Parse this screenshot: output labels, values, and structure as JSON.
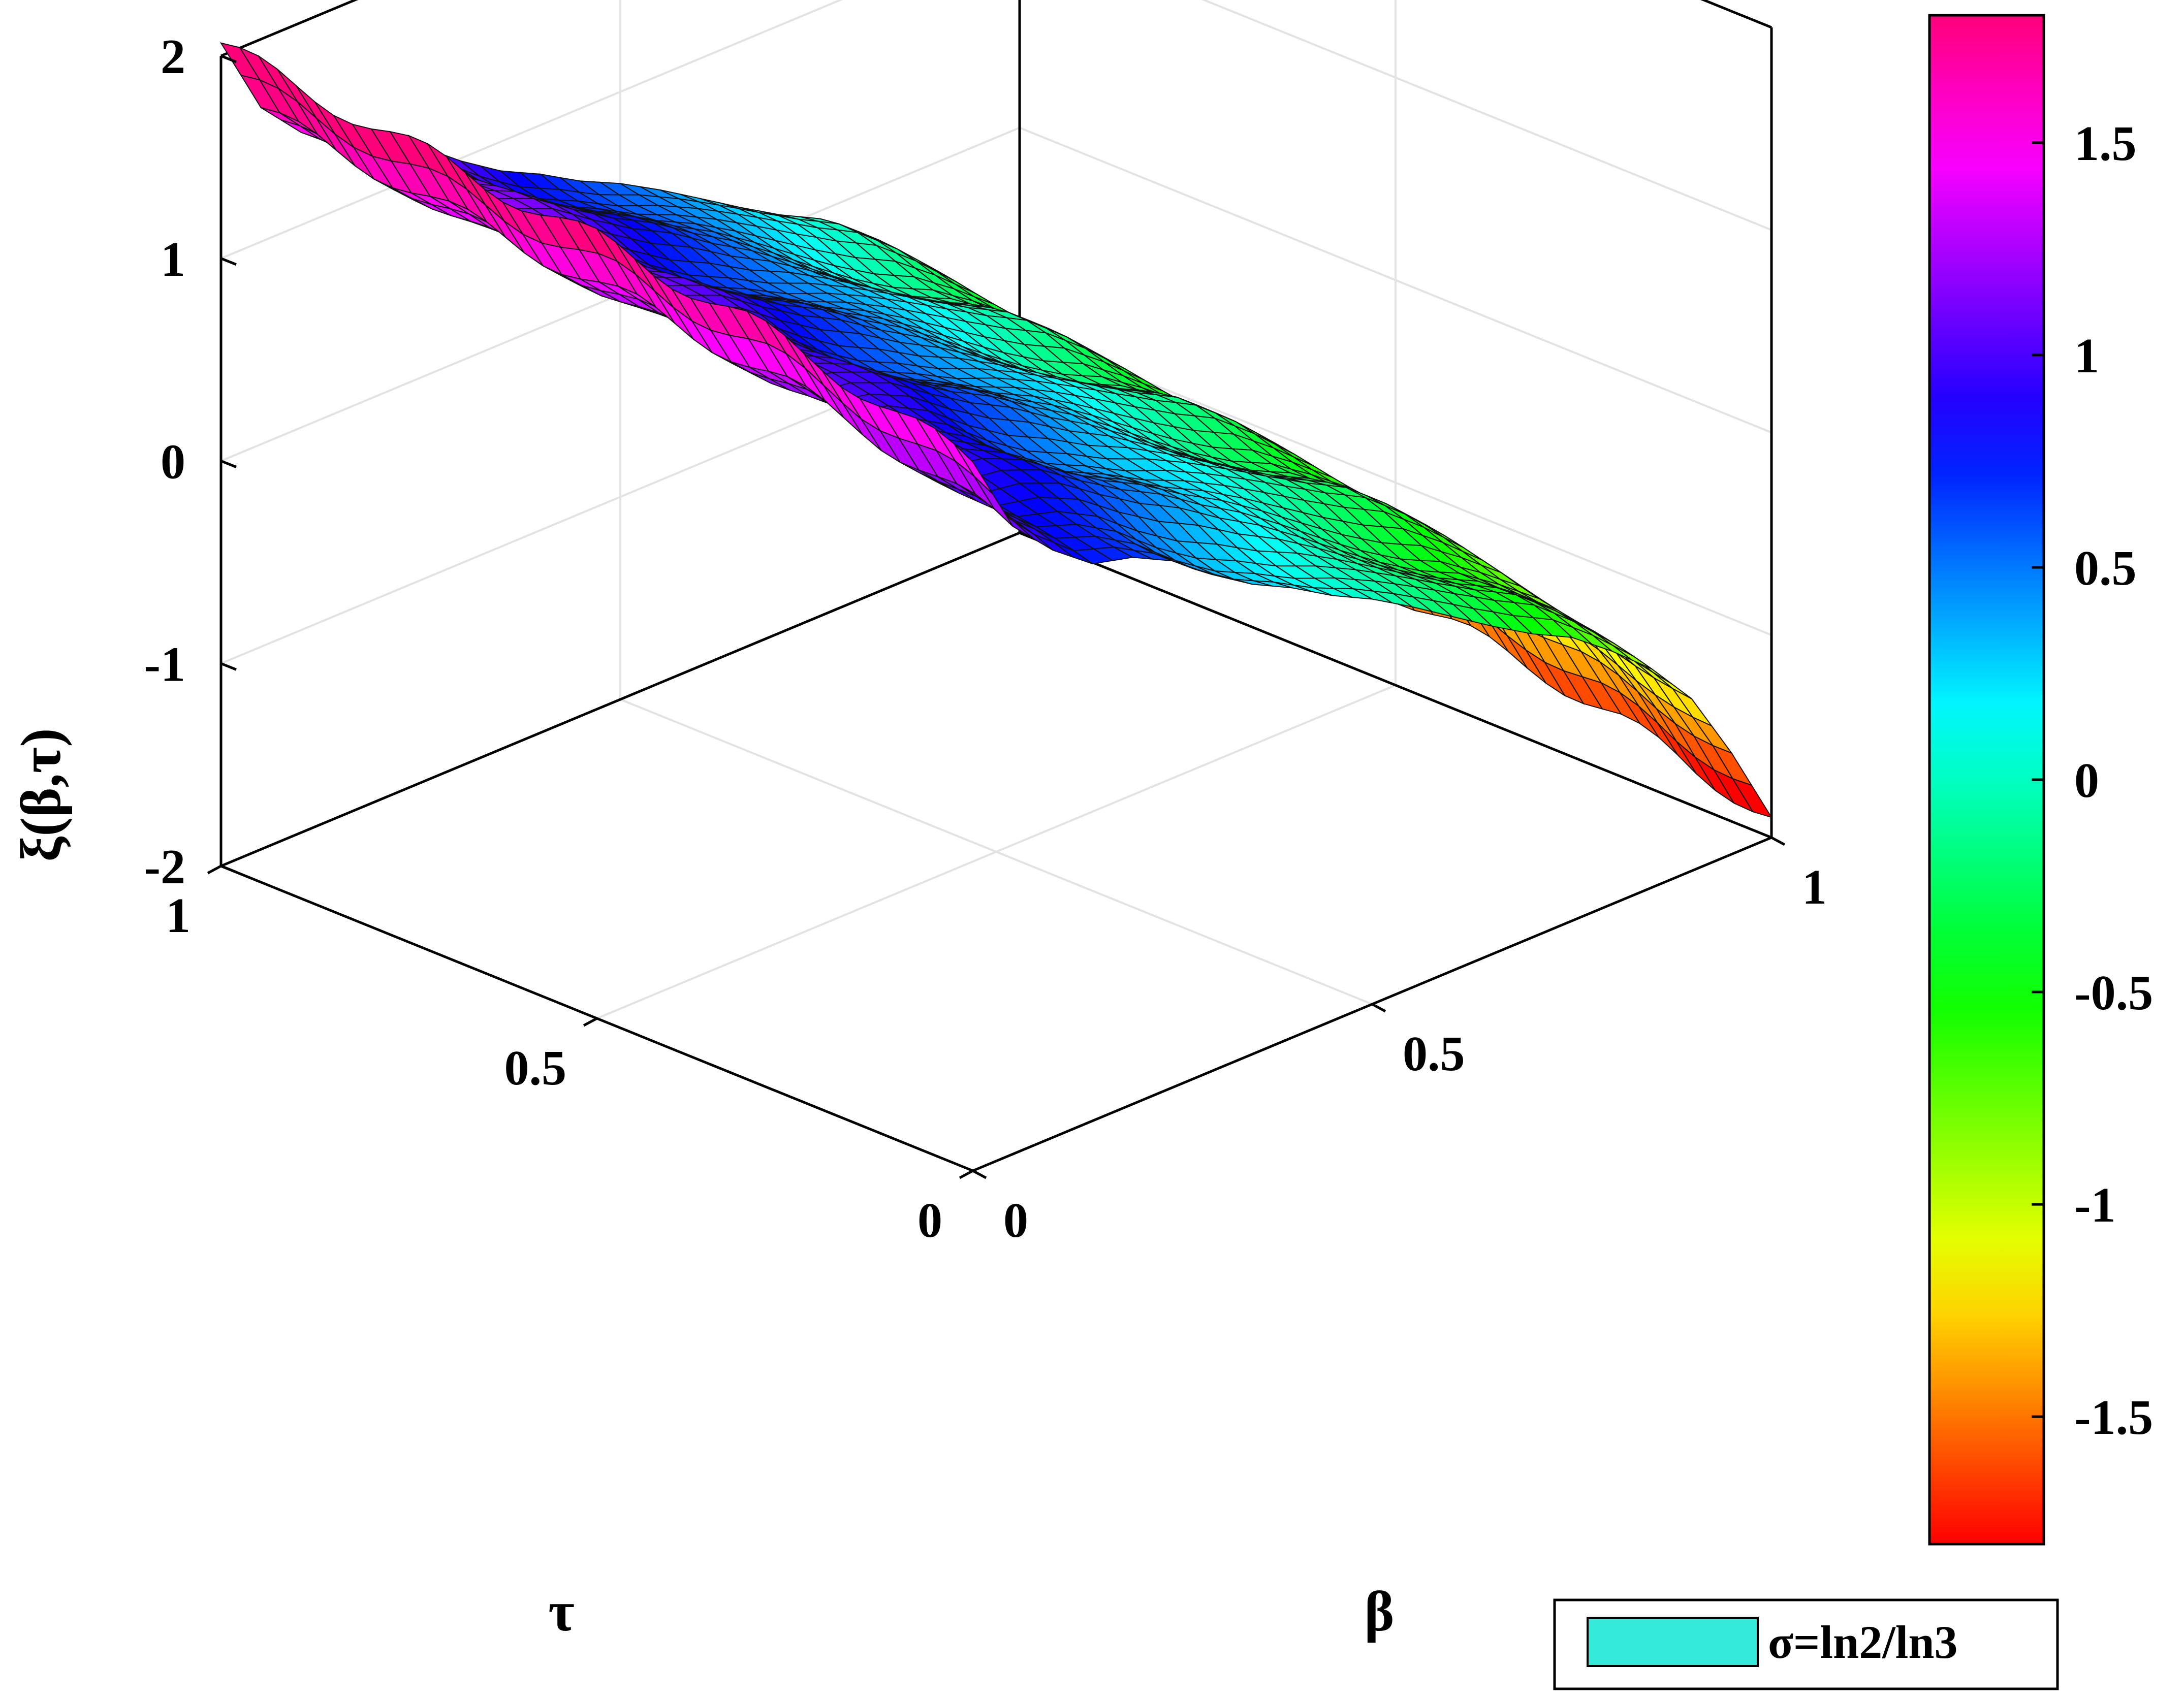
{
  "chart_data": {
    "type": "surface",
    "xlabel": "β",
    "ylabel": "τ",
    "zlabel": "ξ(β,τ)",
    "xlim": [
      0,
      1
    ],
    "ylim": [
      0,
      1
    ],
    "zlim": [
      -2,
      2
    ],
    "x_ticks": [
      "0",
      "0.5",
      "1"
    ],
    "y_ticks": [
      "0",
      "0.5",
      "1"
    ],
    "z_ticks": [
      "-2",
      "-1",
      "0",
      "1",
      "2"
    ],
    "grid": true,
    "colormap": "hsv",
    "colorbar": {
      "range": [
        -1.8,
        1.8
      ],
      "ticks": [
        "1.5",
        "1",
        "0.5",
        "0",
        "-0.5",
        "-1",
        "-1.5"
      ]
    },
    "legend": {
      "entries": [
        {
          "label": "σ=ln2/ln3",
          "color": "#33ead8"
        }
      ],
      "placement": "bottom-right"
    },
    "description_values": {
      "beta_profile": [
        [
          0.0,
          1.8
        ],
        [
          0.05,
          1.4
        ],
        [
          0.1,
          1.2
        ],
        [
          0.15,
          1.05
        ],
        [
          0.2,
          1.0
        ],
        [
          0.25,
          0.9
        ],
        [
          0.3,
          0.75
        ],
        [
          0.35,
          0.62
        ],
        [
          0.4,
          0.52
        ],
        [
          0.45,
          0.4
        ],
        [
          0.5,
          0.3
        ],
        [
          0.55,
          0.18
        ],
        [
          0.6,
          0.05
        ],
        [
          0.65,
          -0.08
        ],
        [
          0.7,
          -0.2
        ],
        [
          0.75,
          -0.3
        ],
        [
          0.8,
          -0.45
        ],
        [
          0.85,
          -0.62
        ],
        [
          0.9,
          -0.85
        ],
        [
          0.95,
          -1.2
        ],
        [
          1.0,
          -1.6
        ]
      ],
      "tau_profile": [
        [
          0.0,
          -0.3
        ],
        [
          0.1,
          -0.22
        ],
        [
          0.2,
          -0.12
        ],
        [
          0.3,
          -0.05
        ],
        [
          0.4,
          0.0
        ],
        [
          0.5,
          0.05
        ],
        [
          0.6,
          0.08
        ],
        [
          0.7,
          0.12
        ],
        [
          0.8,
          0.16
        ],
        [
          0.9,
          0.2
        ],
        [
          1.0,
          0.25
        ]
      ]
    }
  }
}
